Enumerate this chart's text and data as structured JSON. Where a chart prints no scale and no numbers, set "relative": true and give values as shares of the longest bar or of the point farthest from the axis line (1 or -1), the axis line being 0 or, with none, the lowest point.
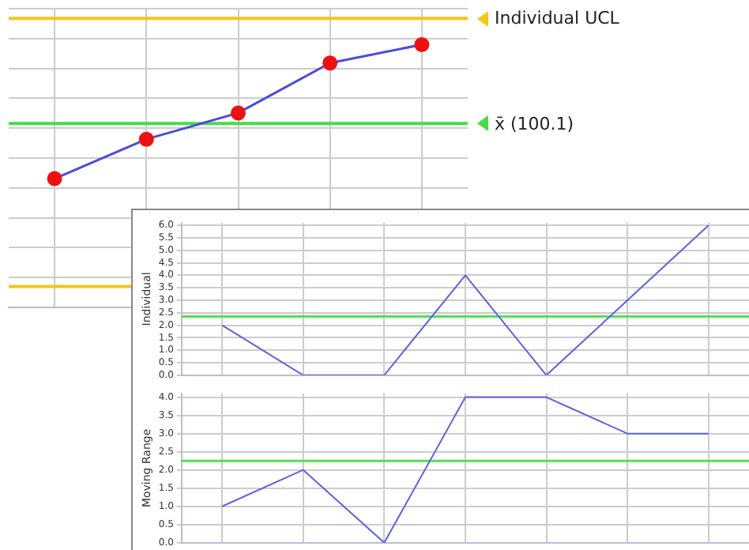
{
  "chart_data": [
    {
      "type": "line",
      "relative": true,
      "categories": [
        null,
        null,
        null,
        null,
        null
      ],
      "tick_labels": false,
      "grid": true,
      "marker": "circle",
      "series": [
        {
          "color": "#4a4ae0",
          "colors": [
            "#ee1111",
            "#ee1111",
            "#ee1111",
            "#ee1111",
            "#ee1111"
          ],
          "values": [
            0.49,
            0.64,
            0.74,
            0.93,
            1
          ]
        }
      ],
      "ref_lines": [
        {
          "axis": "y",
          "value": 1.1,
          "label": "Individual UCL",
          "color": "#f5c518"
        },
        {
          "axis": "y",
          "value": 0.7,
          "label": "x̄ (100.1)",
          "color": "#44dd44"
        },
        {
          "axis": "y",
          "value": 0.08,
          "label": null,
          "color": "#f5c518"
        }
      ]
    },
    {
      "type": "line",
      "ylabel": "Individual",
      "categories": [
        null,
        null,
        null,
        null,
        null,
        null,
        null
      ],
      "tick_labels": "y",
      "grid": true,
      "ylim": [
        0,
        6.1
      ],
      "yticks": [
        {
          "value": 0,
          "label": "0.0"
        },
        0.5,
        {
          "value": 1,
          "label": "1.0"
        },
        1.5,
        {
          "value": 2,
          "label": "2.0"
        },
        2.5,
        {
          "value": 3,
          "label": "3.0"
        },
        3.5,
        {
          "value": 4,
          "label": "4.0"
        },
        4.5,
        {
          "value": 5,
          "label": "5.0"
        },
        5.5,
        {
          "value": 6,
          "label": "6.0"
        }
      ],
      "series": [
        {
          "color": "#6060dd",
          "values": [
            2.0,
            0.0,
            0.0,
            4.0,
            0.0,
            3.0,
            6.0
          ]
        }
      ],
      "ref_lines": [
        {
          "axis": "y",
          "value": 2.35,
          "label": null,
          "color": "#55dd55"
        }
      ]
    },
    {
      "type": "line",
      "ylabel": "Moving Range",
      "categories": [
        null,
        null,
        null,
        null,
        null,
        null,
        null
      ],
      "tick_labels": "y",
      "grid": true,
      "ylim": [
        0,
        4.1
      ],
      "yticks": [
        {
          "value": 0,
          "label": "0.0"
        },
        0.5,
        {
          "value": 1,
          "label": "1.0"
        },
        1.5,
        {
          "value": 2,
          "label": "2.0"
        },
        2.5,
        {
          "value": 3,
          "label": "3.0"
        },
        3.5,
        {
          "value": 4,
          "label": "4.0"
        }
      ],
      "series": [
        {
          "color": "#6060dd",
          "values": [
            1.0,
            2.0,
            0.0,
            4.0,
            4.0,
            3.0,
            3.0
          ]
        }
      ],
      "ref_lines": [
        {
          "axis": "y",
          "value": 2.25,
          "label": null,
          "color": "#55dd55"
        }
      ]
    }
  ]
}
